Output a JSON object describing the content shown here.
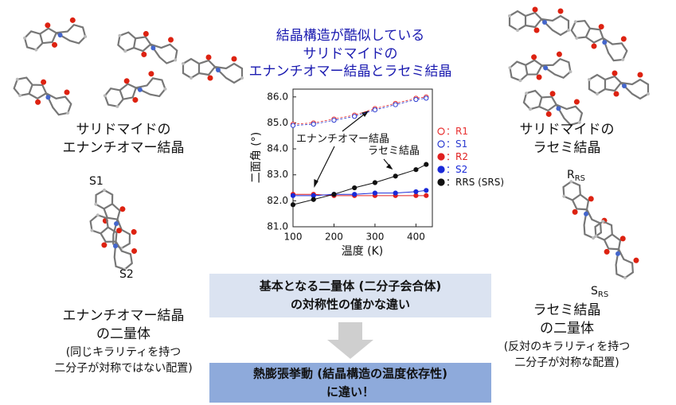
{
  "title": [
    "結晶構造が酷似している",
    "サリドマイドの",
    "エナンチオマー結晶とラセミ結晶"
  ],
  "left": {
    "crystal_label": [
      "サリドマイドの",
      "エナンチオマー結晶"
    ],
    "dimer_labels": [
      {
        "base": "S1",
        "sub": ""
      },
      {
        "base": "S2",
        "sub": ""
      }
    ],
    "dimer_caption": [
      "エナンチオマー結晶",
      "の二量体"
    ],
    "dimer_note": [
      "(同じキラリティを持つ",
      "二分子が対称ではない配置)"
    ]
  },
  "right": {
    "crystal_label": [
      "サリドマイドの",
      "ラセミ結晶"
    ],
    "dimer_labels": [
      {
        "base": "R",
        "sub": "RS"
      },
      {
        "base": "S",
        "sub": "RS"
      }
    ],
    "dimer_caption": [
      "ラセミ結晶",
      "の二量体"
    ],
    "dimer_note": [
      "(反対のキラリティを持つ",
      "二分子が対称な配置)"
    ]
  },
  "summary_box": [
    "基本となる二量体 (二分子会合体)",
    "の対称性の僅かな違い"
  ],
  "result_box": [
    "熱膨張挙動 (結晶構造の温度依存性)",
    "に違い！"
  ],
  "chart_data": {
    "type": "scatter",
    "x_label": "温度 (K)",
    "y_label": "二面角 (°)",
    "x": [
      100,
      150,
      200,
      250,
      300,
      350,
      400,
      425
    ],
    "xlim": [
      100,
      440
    ],
    "xticks": [
      100,
      200,
      300,
      400
    ],
    "ylim": [
      81,
      86.3
    ],
    "yticks": [
      {
        "value": 81,
        "label": "81.0"
      },
      {
        "value": 82,
        "label": "82.0"
      },
      {
        "value": 83,
        "label": "83.0"
      },
      {
        "value": 84,
        "label": "84.0"
      },
      {
        "value": 85,
        "label": "85.0"
      },
      {
        "value": 86,
        "label": "86.0"
      }
    ],
    "legend_separator": "：",
    "series": [
      {
        "name": "R1",
        "color": "#e83030",
        "filled": false,
        "values": [
          84.95,
          85.0,
          85.15,
          85.3,
          85.55,
          85.75,
          85.95,
          86.0
        ]
      },
      {
        "name": "S1",
        "color": "#2a3ad0",
        "filled": false,
        "values": [
          84.9,
          84.95,
          85.1,
          85.25,
          85.5,
          85.7,
          85.9,
          85.95
        ]
      },
      {
        "name": "R2",
        "color": "#e02020",
        "filled": true,
        "values": [
          82.25,
          82.25,
          82.2,
          82.2,
          82.2,
          82.2,
          82.2,
          82.2
        ]
      },
      {
        "name": "S2",
        "color": "#1a2ad8",
        "filled": true,
        "values": [
          82.2,
          82.2,
          82.25,
          82.25,
          82.3,
          82.3,
          82.35,
          82.4
        ]
      },
      {
        "name": "RRS (SRS)",
        "color": "#111111",
        "filled": true,
        "values": [
          81.85,
          82.05,
          82.25,
          82.5,
          82.7,
          82.95,
          83.2,
          83.4
        ]
      }
    ],
    "annotations": [
      "エナンチオマー結晶",
      "ラセミ結晶"
    ]
  }
}
